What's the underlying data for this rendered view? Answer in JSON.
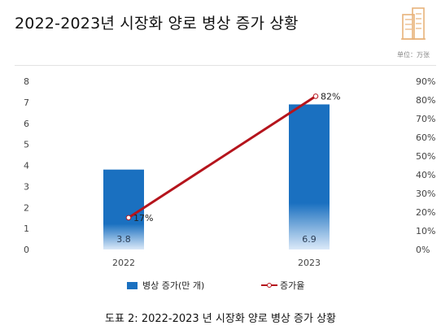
{
  "title": "2022-2023년 시장화 양로 병상 증가 상황",
  "unit_label": "单位：万张",
  "caption": "도표 2: 2022-2023 년 시장화 양로 병상 증가 상황",
  "colors": {
    "bar": "#1a70c0",
    "bar_light": "#dbe9f8",
    "line": "#b5141c",
    "axis_text": "#444444"
  },
  "logo_icon": "building-icon",
  "chart_data": {
    "type": "bar",
    "categories": [
      "2022",
      "2023"
    ],
    "ylim_left": [
      0,
      8
    ],
    "ylim_right": [
      0,
      90
    ],
    "yticks_left": [
      "0",
      "1",
      "2",
      "3",
      "4",
      "5",
      "6",
      "7",
      "8"
    ],
    "yticks_right": [
      "0%",
      "10%",
      "20%",
      "30%",
      "40%",
      "50%",
      "60%",
      "70%",
      "80%",
      "90%"
    ],
    "series": [
      {
        "name": "병상 증가(만 개)",
        "type": "bar",
        "axis": "left",
        "values": [
          3.8,
          6.9
        ],
        "labels": [
          "3.8",
          "6.9"
        ]
      },
      {
        "name": "증가율",
        "type": "line",
        "axis": "right",
        "values": [
          17,
          82
        ],
        "labels": [
          "17%",
          "82%"
        ]
      }
    ],
    "legend_position": "bottom",
    "grid": false
  }
}
